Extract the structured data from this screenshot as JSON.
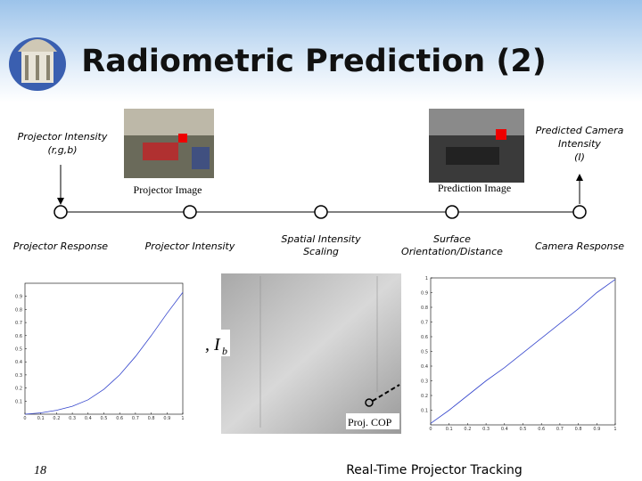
{
  "header": {
    "title": "Radiometric Prediction (2)"
  },
  "top_labels": {
    "left": [
      "Projector Intensity",
      "(r,g,b)"
    ],
    "right": [
      "Predicted Camera",
      "Intensity",
      "(I)"
    ]
  },
  "images": [
    {
      "caption": "Projector Image"
    },
    {
      "caption": "Prediction Image"
    }
  ],
  "nodes": [
    {
      "label": [
        "Projector Response"
      ]
    },
    {
      "label": [
        "Projector Intensity"
      ]
    },
    {
      "label": [
        "Spatial Intensity",
        "Scaling"
      ]
    },
    {
      "label": [
        "Surface",
        "Orientation/Distance"
      ]
    },
    {
      "label": [
        "Camera Response"
      ]
    }
  ],
  "center_image": {
    "formula": ", I",
    "subscript": "b",
    "caption": "Proj. COP"
  },
  "plots": [
    {
      "xlim": [
        0,
        1
      ],
      "ylim": [
        0,
        1
      ],
      "xticks": [
        0,
        0.1,
        0.2,
        0.3,
        0.4,
        0.5,
        0.6,
        0.7,
        0.8,
        0.9,
        1
      ],
      "yticks": [
        0.1,
        0.2,
        0.3,
        0.4,
        0.5,
        0.6,
        0.7,
        0.8,
        0.9
      ],
      "x": [
        0,
        0.1,
        0.2,
        0.3,
        0.4,
        0.5,
        0.6,
        0.7,
        0.8,
        0.9,
        1
      ],
      "y": [
        0,
        0.01,
        0.03,
        0.06,
        0.11,
        0.19,
        0.3,
        0.44,
        0.6,
        0.77,
        0.93
      ]
    },
    {
      "xlim": [
        0,
        1
      ],
      "ylim": [
        0,
        1
      ],
      "xticks": [
        0,
        0.1,
        0.2,
        0.3,
        0.4,
        0.5,
        0.6,
        0.7,
        0.8,
        0.9,
        1
      ],
      "yticks": [
        0.1,
        0.2,
        0.3,
        0.4,
        0.5,
        0.6,
        0.7,
        0.8,
        0.9,
        1
      ],
      "x": [
        0,
        0.1,
        0.2,
        0.3,
        0.4,
        0.5,
        0.6,
        0.7,
        0.8,
        0.9,
        1
      ],
      "y": [
        0.01,
        0.1,
        0.2,
        0.3,
        0.39,
        0.49,
        0.59,
        0.69,
        0.79,
        0.9,
        0.99
      ]
    }
  ],
  "footer": {
    "page": "18",
    "title": "Real-Time Projector Tracking"
  }
}
